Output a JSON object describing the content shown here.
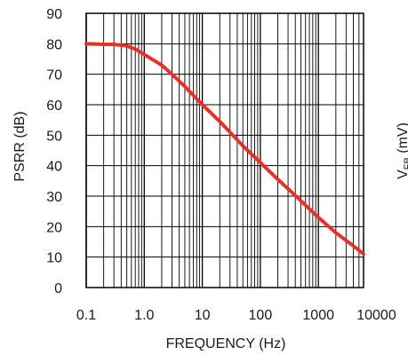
{
  "chart_data": {
    "type": "line",
    "title": "",
    "xlabel": "FREQUENCY (Hz)",
    "ylabel": "PSRR (dB)",
    "y2label_main": "V",
    "y2label_sub": "FB",
    "y2label_unit": " (mV)",
    "x_scale": "log",
    "xlim": [
      0.1,
      6000
    ],
    "ylim": [
      0,
      90
    ],
    "grid": true,
    "x_ticks": [
      0.1,
      1.0,
      10,
      100,
      1000,
      10000
    ],
    "x_tick_labels": [
      "0.1",
      "1.0",
      "10",
      "100",
      "1000",
      "10000"
    ],
    "y_ticks": [
      0,
      10,
      20,
      30,
      40,
      50,
      60,
      70,
      80,
      90
    ],
    "y_tick_labels": [
      "0",
      "10",
      "20",
      "30",
      "40",
      "50",
      "60",
      "70",
      "80",
      "90"
    ],
    "series": [
      {
        "color": "#e8302a",
        "x": [
          0.1,
          0.2,
          0.3,
          0.5,
          0.7,
          1.0,
          2,
          3,
          5,
          10,
          20,
          50,
          100,
          200,
          500,
          1000,
          2000,
          4000,
          6000
        ],
        "y": [
          80,
          79.8,
          79.8,
          79.3,
          78.3,
          76.5,
          73,
          70,
          66,
          60,
          54.5,
          46.5,
          41,
          35.5,
          28.5,
          23,
          18,
          13.7,
          11
        ]
      }
    ]
  }
}
